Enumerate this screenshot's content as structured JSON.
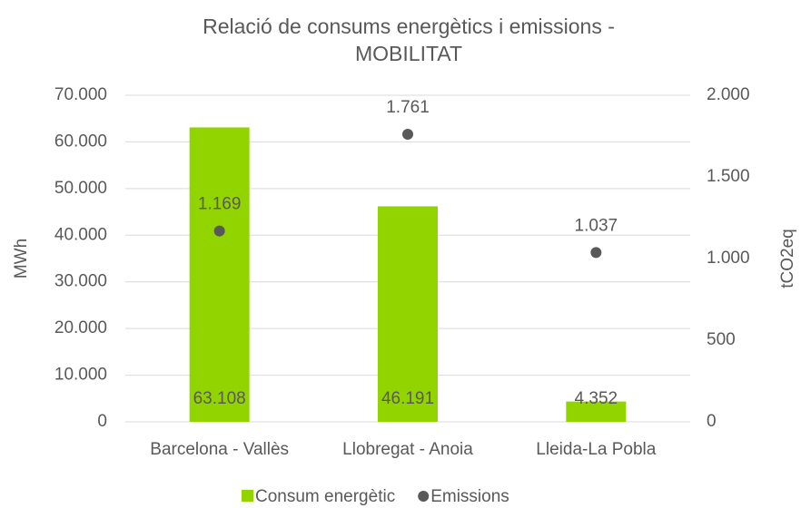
{
  "chart_data": {
    "type": "bar",
    "title": [
      "Relació de consums energètics i emissions -",
      "MOBILITAT"
    ],
    "y_label": "MWh",
    "y2_label": "tCO2eq",
    "categories": [
      "Barcelona - Vallès",
      "Llobregat - Anoia",
      "Lleida-La Pobla"
    ],
    "series": [
      {
        "name": "Consum energètic",
        "type": "bar",
        "color": "#92d400",
        "values": [
          63108,
          46191,
          4352
        ],
        "value_labels": [
          "63.108",
          "46.191",
          "4.352"
        ]
      },
      {
        "name": "Emissions",
        "type": "scatter",
        "axis": "y2",
        "color": "#595959",
        "values": [
          1169,
          1761,
          1037
        ],
        "value_labels": [
          "1.169",
          "1.761",
          "1.037"
        ]
      }
    ],
    "ylim": [
      0,
      70000
    ],
    "yticks": [
      0,
      {
        "value": 10000,
        "label": "10.000"
      },
      {
        "value": 20000,
        "label": "20.000"
      },
      {
        "value": 30000,
        "label": "30.000"
      },
      {
        "value": 40000,
        "label": "40.000"
      },
      {
        "value": 50000,
        "label": "50.000"
      },
      {
        "value": 60000,
        "label": "60.000"
      },
      {
        "value": 70000,
        "label": "70.000"
      }
    ],
    "y2lim": [
      0,
      2000
    ],
    "y2ticks": [
      0,
      500,
      {
        "value": 1000,
        "label": "1.000"
      },
      {
        "value": 1500,
        "label": "1.500"
      },
      {
        "value": 2000,
        "label": "2.000"
      }
    ],
    "grid": true,
    "legend": "bottom"
  }
}
